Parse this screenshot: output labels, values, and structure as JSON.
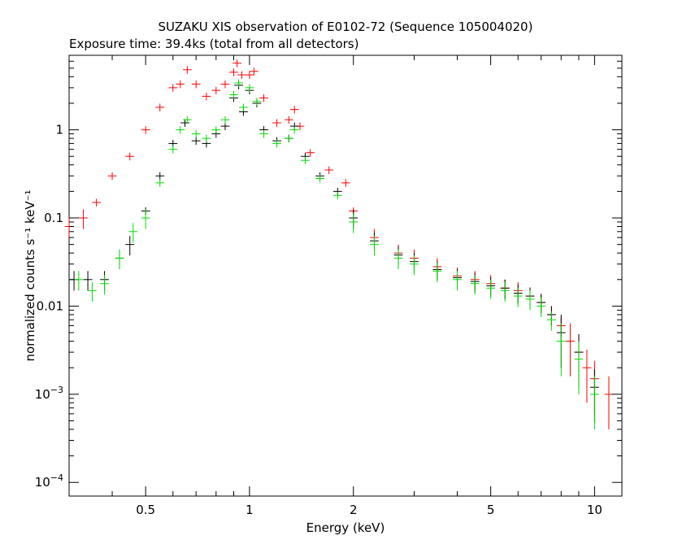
{
  "chart_data": {
    "type": "scatter",
    "title": "SUZAKU XIS observation of E0102-72 (Sequence 105004020)",
    "subtitle": "Exposure time: 39.4ks (total from all detectors)",
    "xlabel": "Energy (keV)",
    "ylabel": "normalized counts s⁻¹ keV⁻¹",
    "x_scale": "log",
    "y_scale": "log",
    "xlim": [
      0.3,
      12
    ],
    "ylim": [
      7e-05,
      7
    ],
    "grid": false,
    "x_ticks": [
      {
        "value": 0.5,
        "label": "0.5"
      },
      {
        "value": 1,
        "label": "1"
      },
      {
        "value": 2,
        "label": "2"
      },
      {
        "value": 5,
        "label": "5"
      },
      {
        "value": 10,
        "label": "10"
      }
    ],
    "y_ticks": [
      {
        "value": 1,
        "label": "1"
      },
      {
        "value": 0.1,
        "label": "0.1"
      },
      {
        "value": 0.01,
        "label": "0.01"
      },
      {
        "value": 0.001,
        "label": "10",
        "exp": "−3"
      },
      {
        "value": 0.0001,
        "label": "10",
        "exp": "−4"
      }
    ],
    "series": [
      {
        "color": "#ff0000",
        "points": [
          [
            0.3,
            0.08
          ],
          [
            0.33,
            0.1
          ],
          [
            0.36,
            0.15
          ],
          [
            0.4,
            0.3
          ],
          [
            0.45,
            0.5
          ],
          [
            0.5,
            1.0
          ],
          [
            0.55,
            1.8
          ],
          [
            0.6,
            3.0
          ],
          [
            0.63,
            3.3
          ],
          [
            0.66,
            4.8
          ],
          [
            0.7,
            3.3
          ],
          [
            0.75,
            2.4
          ],
          [
            0.8,
            2.8
          ],
          [
            0.85,
            3.3
          ],
          [
            0.9,
            4.5
          ],
          [
            0.92,
            5.7
          ],
          [
            0.95,
            4.2
          ],
          [
            1.0,
            4.2
          ],
          [
            1.03,
            4.6
          ],
          [
            1.1,
            2.3
          ],
          [
            1.2,
            1.2
          ],
          [
            1.3,
            1.3
          ],
          [
            1.35,
            1.7
          ],
          [
            1.4,
            1.1
          ],
          [
            1.5,
            0.55
          ],
          [
            1.7,
            0.35
          ],
          [
            1.9,
            0.25
          ],
          [
            2.0,
            0.12
          ],
          [
            2.3,
            0.06
          ],
          [
            2.7,
            0.04
          ],
          [
            3.0,
            0.035
          ],
          [
            3.5,
            0.028
          ],
          [
            4.0,
            0.022
          ],
          [
            4.5,
            0.02
          ],
          [
            5.0,
            0.018
          ],
          [
            5.5,
            0.016
          ],
          [
            6.0,
            0.015
          ],
          [
            6.5,
            0.013
          ],
          [
            7.0,
            0.011
          ],
          [
            7.5,
            0.008
          ],
          [
            8.0,
            0.006
          ],
          [
            8.5,
            0.004
          ],
          [
            9.0,
            0.003
          ],
          [
            9.5,
            0.002
          ],
          [
            10.0,
            0.0015
          ],
          [
            11.0,
            0.001
          ]
        ]
      },
      {
        "color": "#000000",
        "points": [
          [
            0.31,
            0.02
          ],
          [
            0.34,
            0.02
          ],
          [
            0.38,
            0.02
          ],
          [
            0.42,
            0.035
          ],
          [
            0.45,
            0.05
          ],
          [
            0.5,
            0.12
          ],
          [
            0.55,
            0.3
          ],
          [
            0.6,
            0.7
          ],
          [
            0.65,
            1.2
          ],
          [
            0.7,
            0.75
          ],
          [
            0.75,
            0.7
          ],
          [
            0.8,
            0.9
          ],
          [
            0.85,
            1.1
          ],
          [
            0.9,
            2.3
          ],
          [
            0.93,
            3.2
          ],
          [
            0.96,
            1.6
          ],
          [
            1.0,
            2.8
          ],
          [
            1.05,
            2.0
          ],
          [
            1.1,
            1.0
          ],
          [
            1.2,
            0.75
          ],
          [
            1.3,
            0.8
          ],
          [
            1.35,
            1.1
          ],
          [
            1.45,
            0.5
          ],
          [
            1.6,
            0.3
          ],
          [
            1.8,
            0.2
          ],
          [
            2.0,
            0.1
          ],
          [
            2.3,
            0.055
          ],
          [
            2.7,
            0.038
          ],
          [
            3.0,
            0.032
          ],
          [
            3.5,
            0.026
          ],
          [
            4.0,
            0.021
          ],
          [
            4.5,
            0.019
          ],
          [
            5.0,
            0.017
          ],
          [
            5.5,
            0.016
          ],
          [
            6.0,
            0.014
          ],
          [
            6.5,
            0.013
          ],
          [
            7.0,
            0.011
          ],
          [
            7.5,
            0.008
          ],
          [
            8.0,
            0.005
          ],
          [
            9.0,
            0.003
          ],
          [
            10.0,
            0.0012
          ]
        ]
      },
      {
        "color": "#00dd00",
        "points": [
          [
            0.32,
            0.02
          ],
          [
            0.35,
            0.015
          ],
          [
            0.38,
            0.018
          ],
          [
            0.42,
            0.035
          ],
          [
            0.46,
            0.07
          ],
          [
            0.5,
            0.1
          ],
          [
            0.55,
            0.25
          ],
          [
            0.6,
            0.6
          ],
          [
            0.63,
            1.0
          ],
          [
            0.66,
            1.3
          ],
          [
            0.7,
            0.9
          ],
          [
            0.75,
            0.8
          ],
          [
            0.8,
            1.0
          ],
          [
            0.85,
            1.3
          ],
          [
            0.9,
            2.5
          ],
          [
            0.93,
            3.4
          ],
          [
            0.96,
            1.8
          ],
          [
            1.0,
            3.0
          ],
          [
            1.05,
            2.1
          ],
          [
            1.1,
            0.9
          ],
          [
            1.2,
            0.7
          ],
          [
            1.3,
            0.8
          ],
          [
            1.35,
            1.0
          ],
          [
            1.45,
            0.45
          ],
          [
            1.6,
            0.28
          ],
          [
            1.8,
            0.18
          ],
          [
            2.0,
            0.09
          ],
          [
            2.3,
            0.05
          ],
          [
            2.7,
            0.035
          ],
          [
            3.0,
            0.03
          ],
          [
            3.5,
            0.025
          ],
          [
            4.0,
            0.02
          ],
          [
            4.5,
            0.018
          ],
          [
            5.0,
            0.016
          ],
          [
            5.5,
            0.015
          ],
          [
            6.0,
            0.013
          ],
          [
            6.5,
            0.012
          ],
          [
            7.0,
            0.01
          ],
          [
            7.5,
            0.007
          ],
          [
            8.0,
            0.004
          ],
          [
            9.0,
            0.0025
          ],
          [
            10.0,
            0.001
          ]
        ]
      }
    ]
  }
}
